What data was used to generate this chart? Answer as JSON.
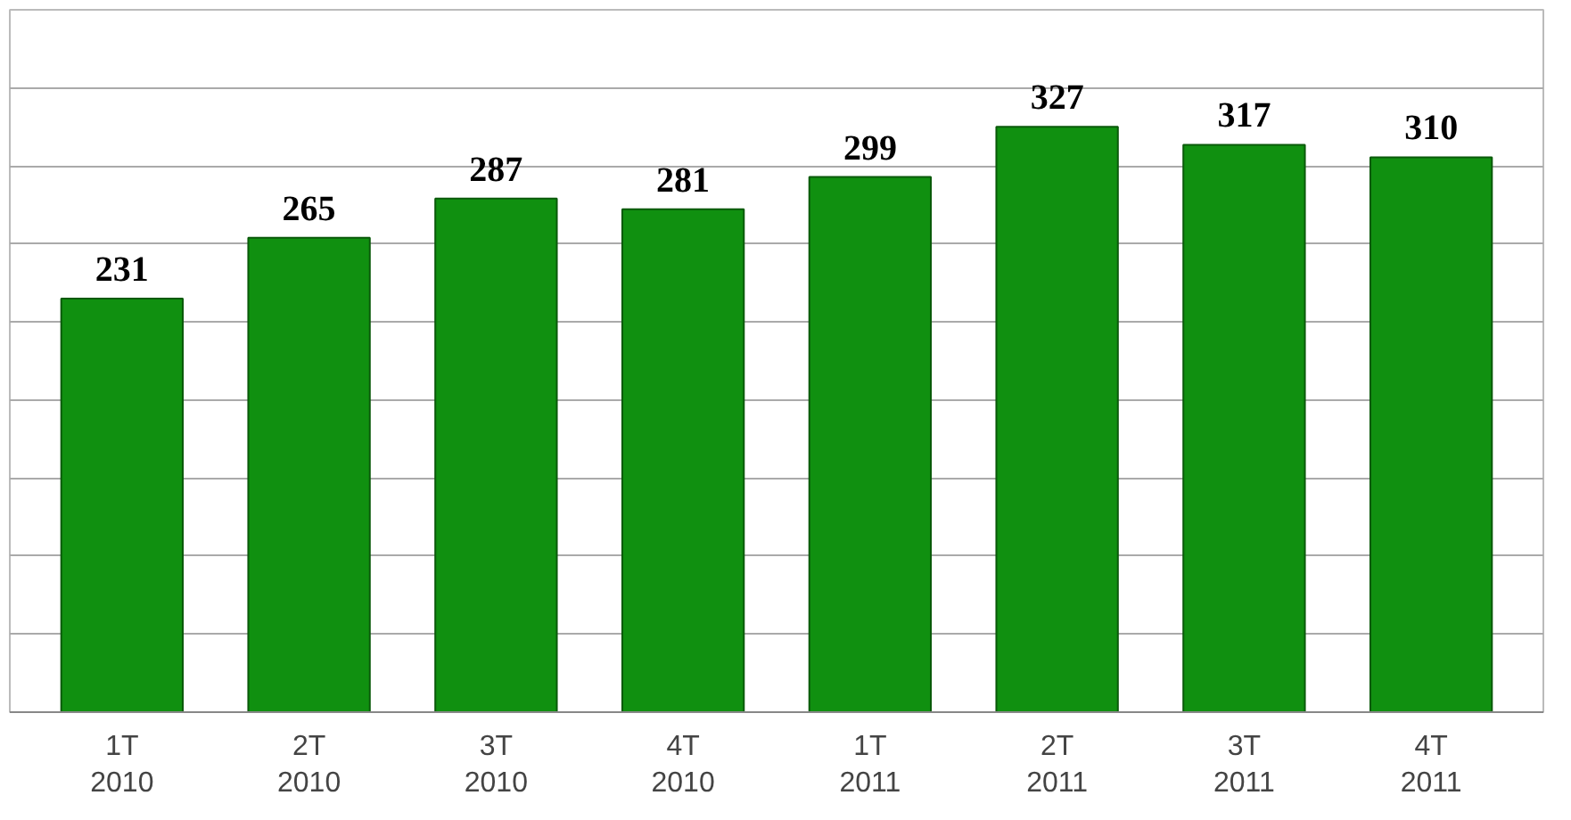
{
  "chart_data": {
    "type": "bar",
    "categories": [
      "1T\n2010",
      "2T\n2010",
      "3T\n2010",
      "4T\n2010",
      "1T\n2011",
      "2T\n2011",
      "3T\n2011",
      "4T\n2011"
    ],
    "values": [
      231,
      265,
      287,
      281,
      299,
      327,
      317,
      310
    ],
    "color": "#109010",
    "data_labels": true,
    "grid": "y"
  }
}
